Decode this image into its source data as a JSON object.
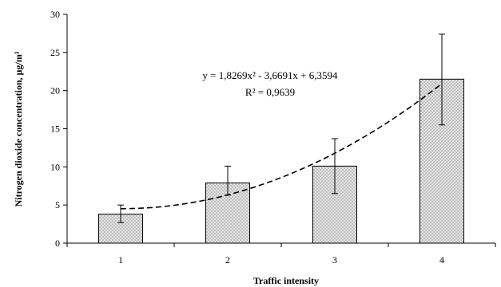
{
  "chart_data": {
    "type": "bar",
    "categories": [
      "1",
      "2",
      "3",
      "4"
    ],
    "series": [
      {
        "values": [
          3.8,
          7.9,
          10.1,
          21.5
        ],
        "error_low": [
          2.7,
          6.3,
          6.5,
          15.5
        ],
        "error_high": [
          5.0,
          10.1,
          13.7,
          27.4
        ]
      }
    ],
    "trendline": {
      "type": "polynomial",
      "coefficients": [
        1.8269,
        -3.6691,
        6.3594
      ],
      "style": "dashed",
      "equation": "y = 1,8269x² - 3,6691x + 6,3594",
      "r2_label": "R² = 0,9639"
    },
    "xlabel": "Traffic intensity",
    "ylabel": "Nitrogen dioxide concentration, μg/m³",
    "ylim": [
      0,
      30
    ],
    "yticks": [
      "0",
      "5",
      "10",
      "15",
      "20",
      "25",
      "30"
    ],
    "grid": false,
    "bar_fill": "checkered-grey",
    "colors": {
      "bar_outline": "#000000",
      "trendline": "#000000",
      "axis": "#000000"
    }
  }
}
